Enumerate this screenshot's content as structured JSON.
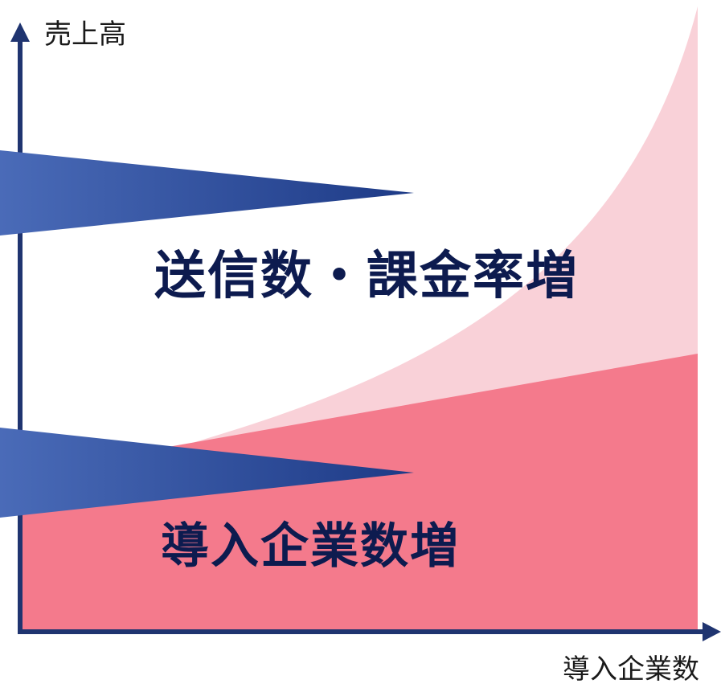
{
  "axes": {
    "y_label": "売上高",
    "x_label": "導入企業数"
  },
  "regions": {
    "upper_title": "送信数・課金率増",
    "lower_title": "導入企業数増"
  },
  "colors": {
    "axis": "#1f3470",
    "curve_fill": "#f9d1d8",
    "slope_fill": "#f47a8c",
    "wedge_start": "#4a6bb8",
    "wedge_end": "#1d3a86",
    "title_text": "#0d1b4f"
  }
}
